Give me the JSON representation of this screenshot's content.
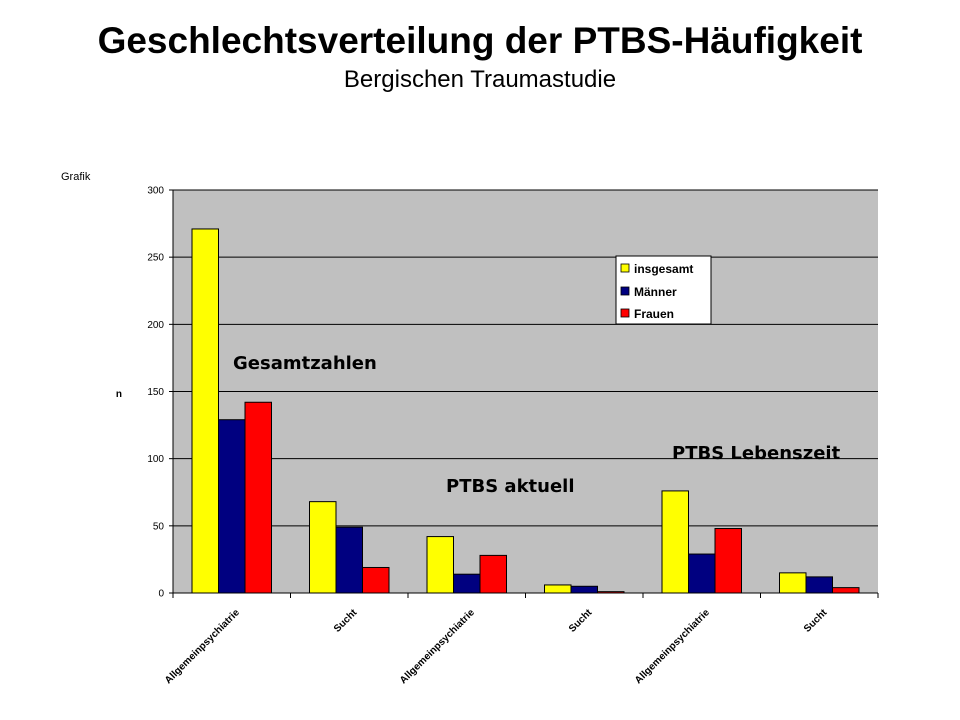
{
  "header": {
    "title": "Geschlechtsverteilung der PTBS-Häufigkeit",
    "subtitle": "Bergischen Traumastudie"
  },
  "corner_label": "Grafik",
  "chart_data": {
    "type": "bar",
    "title": "",
    "xlabel": "",
    "ylabel": "n",
    "ylim": [
      0,
      300
    ],
    "yticks": [
      0,
      50,
      100,
      150,
      200,
      250,
      300
    ],
    "grid": true,
    "legend_position": "top-right",
    "categories": [
      "Allgemeinpsychiatrie",
      "Sucht",
      "Allgemeinpsychiatrie",
      "Sucht",
      "Allgemeinpsychiatrie",
      "Sucht"
    ],
    "series": [
      {
        "name": "insgesamt",
        "color": "#FFFF00",
        "values": [
          271,
          68,
          42,
          6,
          76,
          15
        ]
      },
      {
        "name": "Männer",
        "color": "#000080",
        "values": [
          129,
          49,
          14,
          5,
          29,
          12
        ]
      },
      {
        "name": "Frauen",
        "color": "#FF0000",
        "values": [
          142,
          19,
          28,
          1,
          48,
          4
        ]
      }
    ],
    "annotations": [
      "Gesamtzahlen",
      "PTBS aktuell",
      "PTBS Lebenszeit"
    ]
  }
}
